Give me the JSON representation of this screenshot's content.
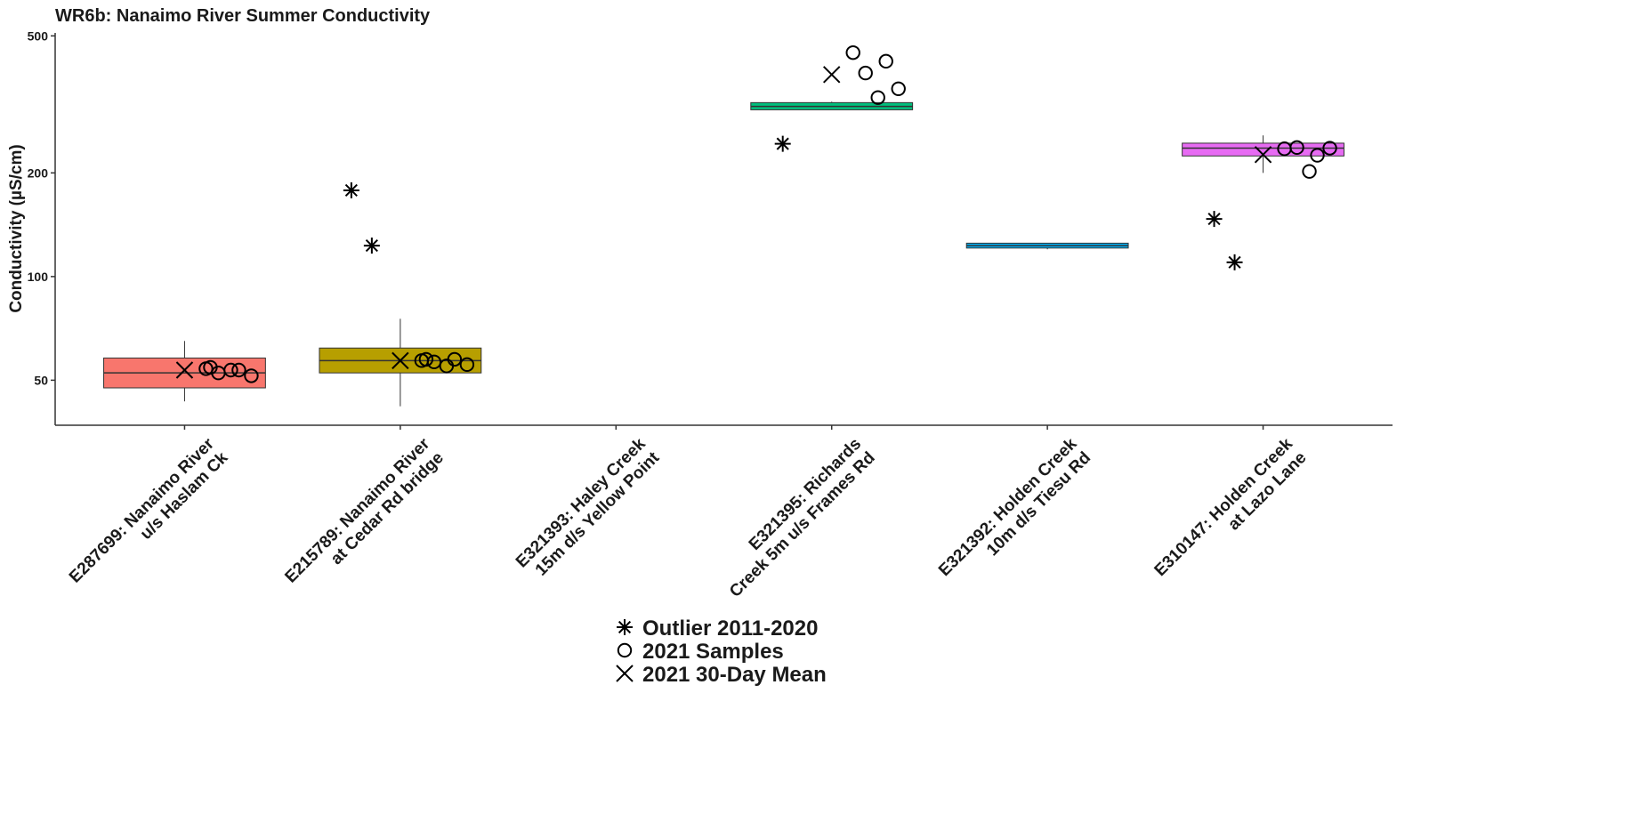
{
  "chart_data": {
    "type": "box",
    "title": "WR6b: Nanaimo River Summer Conductivity",
    "y_label": "Conductivity (µS/cm)",
    "log_scale": true,
    "ylim": [
      37,
      510
    ],
    "yticks": [
      50,
      100,
      200,
      500
    ],
    "categories": [
      [
        "E287699: Nanaimo River",
        "u/s Haslam Ck"
      ],
      [
        "E215789: Nanaimo River",
        "at Cedar Rd bridge"
      ],
      [
        "E321393: Haley Creek",
        "15m d/s Yellow Point"
      ],
      [
        "E321395: Richards",
        "Creek 5m u/s Frames Rd"
      ],
      [
        "E321392: Holden Creek",
        "10m d/s Tiesu Rd"
      ],
      [
        "E310147: Holden Creek",
        "at Lazo Lane"
      ]
    ],
    "boxes": [
      {
        "low": 43.4,
        "q1": 47.5,
        "median": 52.5,
        "q3": 58,
        "high": 65,
        "color": "#F8766D"
      },
      {
        "low": 42,
        "q1": 52.5,
        "median": 57,
        "q3": 62,
        "high": 75.4,
        "color": "#B79F00"
      },
      null,
      {
        "low": 305,
        "q1": 305,
        "median": 312,
        "q3": 320,
        "high": 322,
        "color": "#00BF7D"
      },
      {
        "low": 120,
        "q1": 121,
        "median": 123,
        "q3": 125,
        "high": 125,
        "color": "#00B0F6"
      },
      {
        "low": 200,
        "q1": 224,
        "median": 236,
        "q3": 244,
        "high": 257,
        "color": "#E76BF3"
      }
    ],
    "series": [
      {
        "name": "Outlier 2011-2020",
        "marker": "asterisk",
        "values": [
          [],
          [
            178,
            123
          ],
          [],
          [
            243
          ],
          [],
          [
            147,
            110
          ]
        ]
      },
      {
        "name": "2021 Samples",
        "marker": "circle",
        "values": [
          [
            54,
            53.5,
            52.5,
            51.5,
            53.5,
            54.5
          ],
          [
            57,
            57.5,
            56.5,
            55.5,
            55,
            57.5
          ],
          [],
          [
            447,
            422,
            390,
            351,
            331
          ],
          [],
          [
            235,
            225,
            237,
            236,
            202
          ]
        ]
      },
      {
        "name": "2021 30-Day Mean",
        "marker": "cross",
        "values": [
          [
            53.5
          ],
          [
            57
          ],
          [],
          [
            386
          ],
          [],
          [
            226
          ]
        ]
      }
    ]
  }
}
